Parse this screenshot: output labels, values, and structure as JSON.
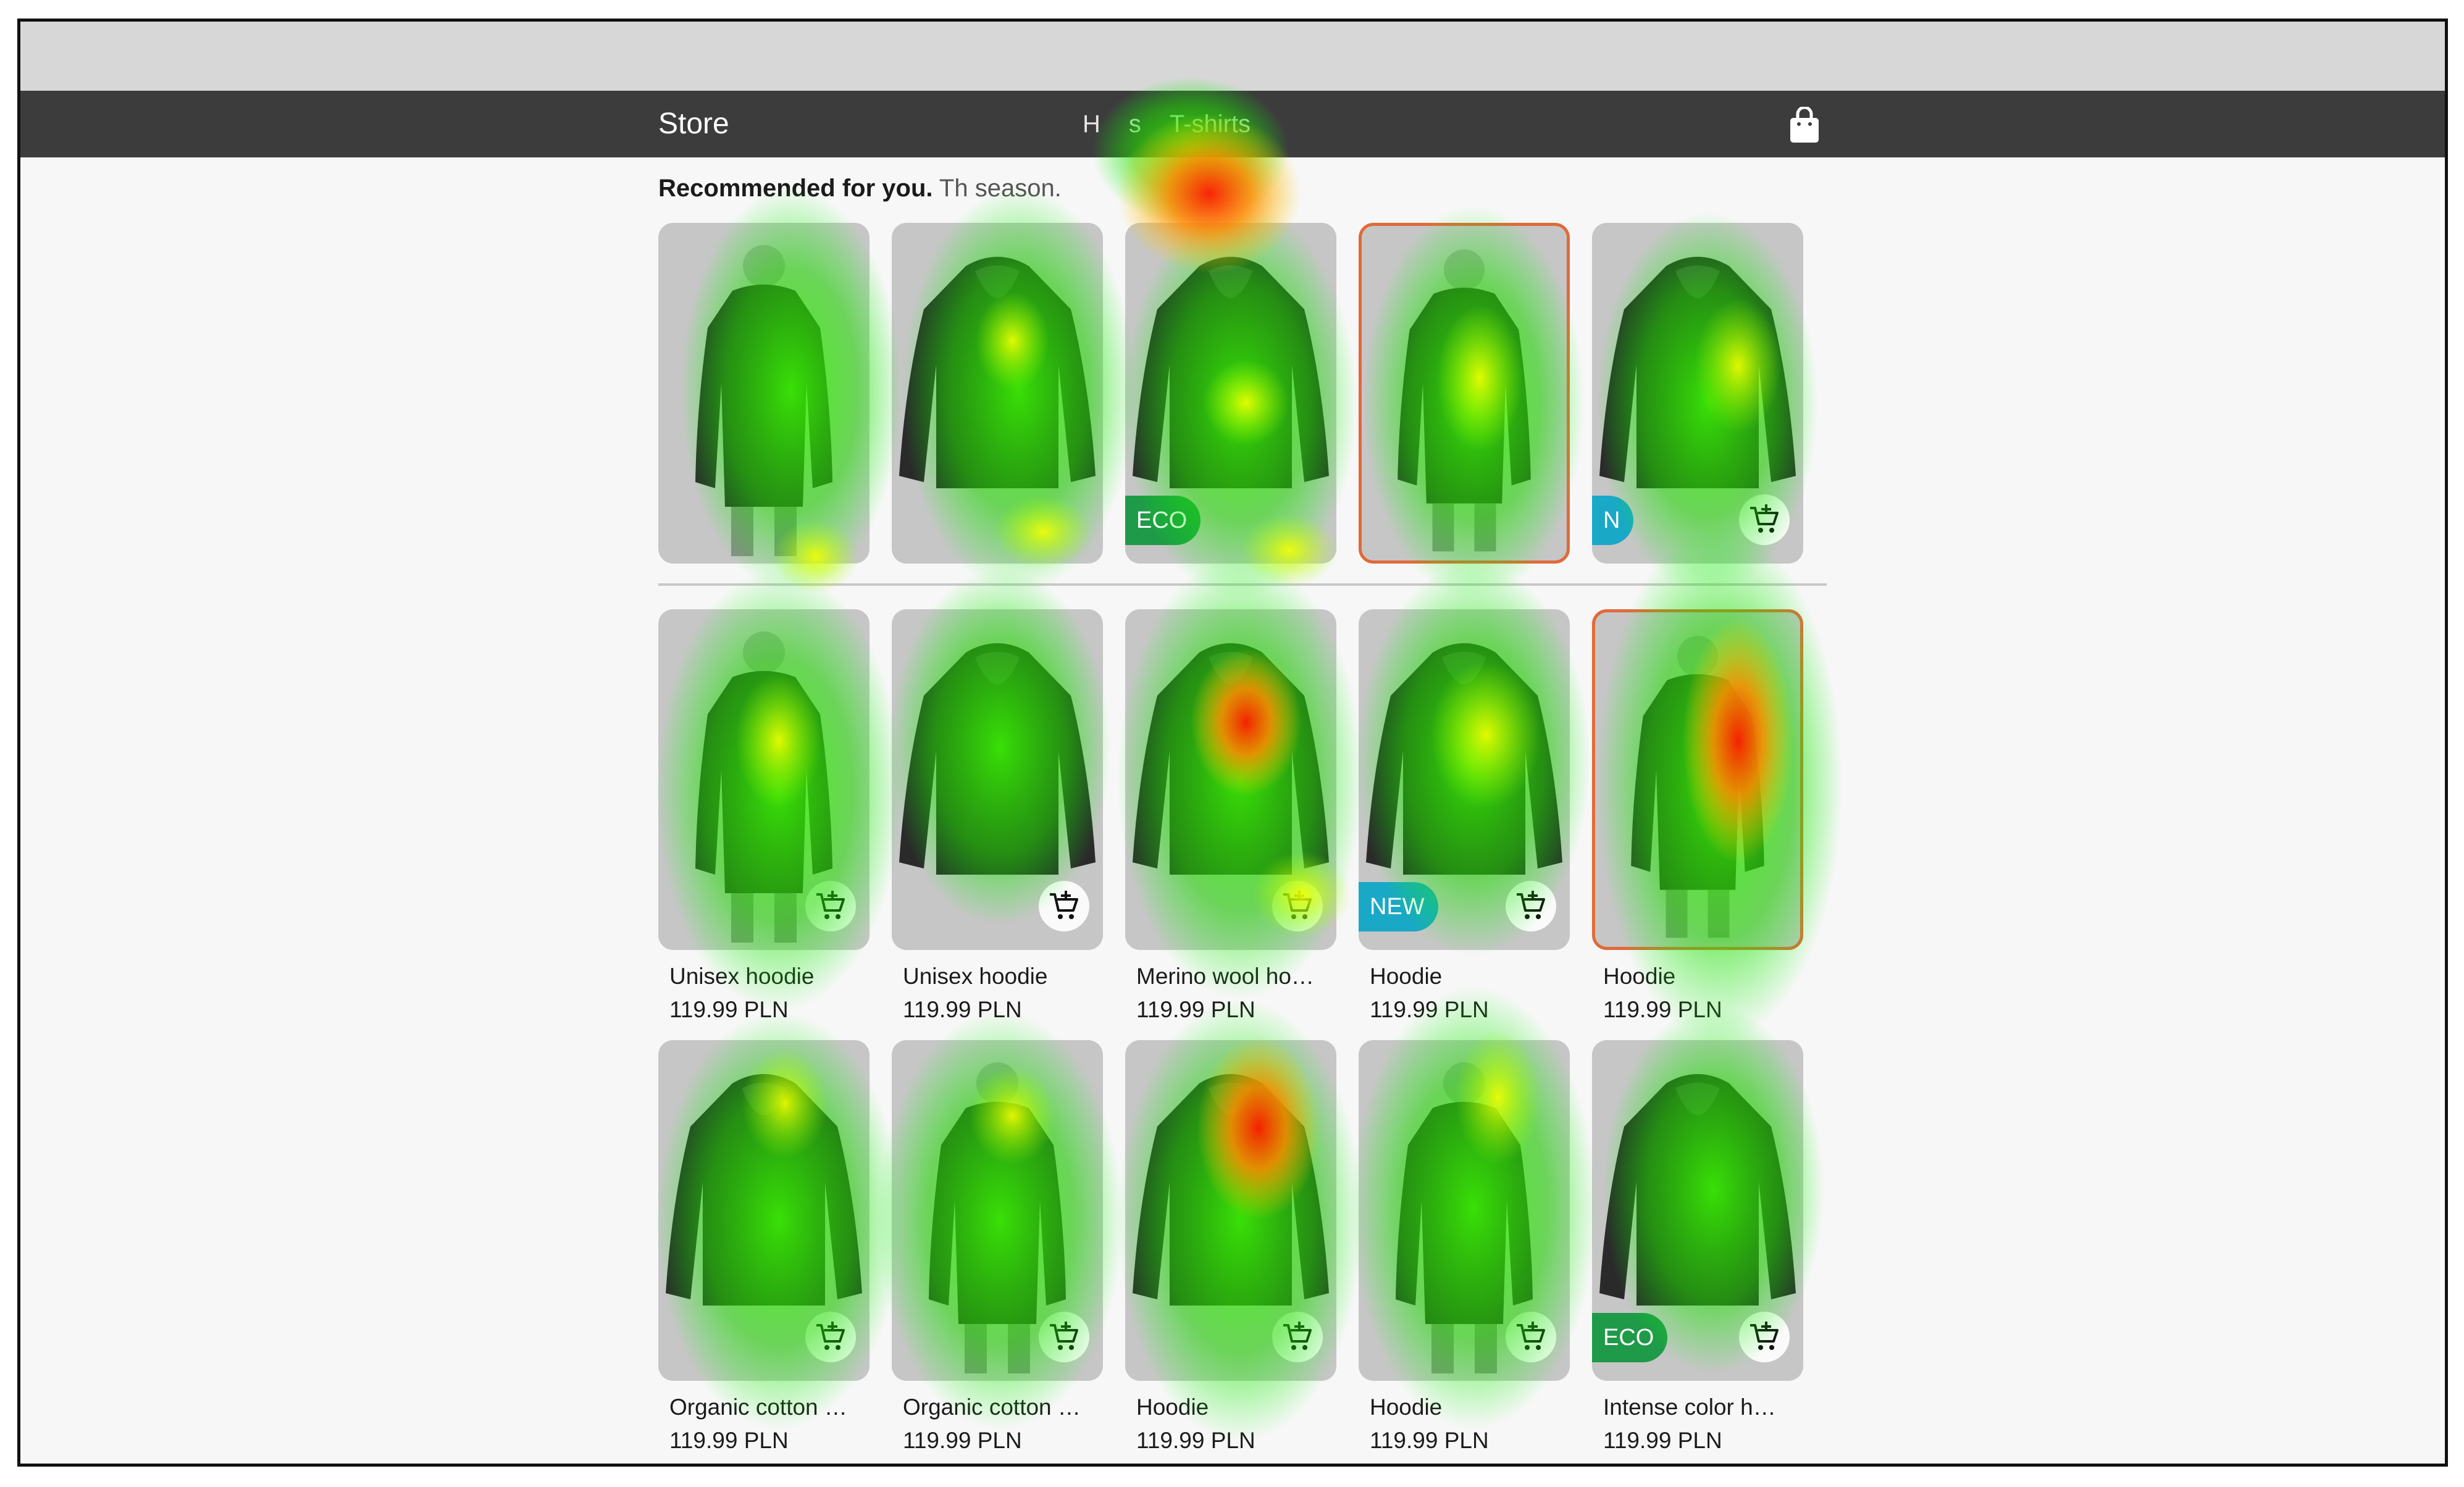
{
  "app": {
    "title": "Store",
    "nav": [
      "H",
      "s",
      "T-shirts"
    ],
    "heading_bold": "Recommended for you.",
    "heading_rest": "Th                                                    season."
  },
  "colors": {
    "appbar": "#3c3c3c",
    "eco": "#1f9a48",
    "new": "#1aa8c7",
    "selected": "#e06a3a"
  },
  "recommended": [
    {
      "badge": null
    },
    {
      "badge": null
    },
    {
      "badge": "ECO"
    },
    {
      "badge": null,
      "selected": true
    },
    {
      "badge": "N"
    }
  ],
  "products_row1": [
    {
      "title": "Unisex hoodie",
      "price": "119.99 PLN"
    },
    {
      "title": "Unisex hoodie",
      "price": "119.99 PLN"
    },
    {
      "title": "Merino wool ho…",
      "price": "119.99 PLN"
    },
    {
      "title": "Hoodie",
      "price": "119.99 PLN",
      "badge": "NEW"
    },
    {
      "title": "Hoodie",
      "price": "119.99 PLN",
      "selected": true
    }
  ],
  "products_row2": [
    {
      "title": "Organic cotton …",
      "price": "119.99 PLN"
    },
    {
      "title": "Organic cotton …",
      "price": "119.99 PLN"
    },
    {
      "title": "Hoodie",
      "price": "119.99 PLN"
    },
    {
      "title": "Hoodie",
      "price": "119.99 PLN"
    },
    {
      "title": "Intense color h…",
      "price": "119.99 PLN",
      "badge": "ECO"
    }
  ]
}
